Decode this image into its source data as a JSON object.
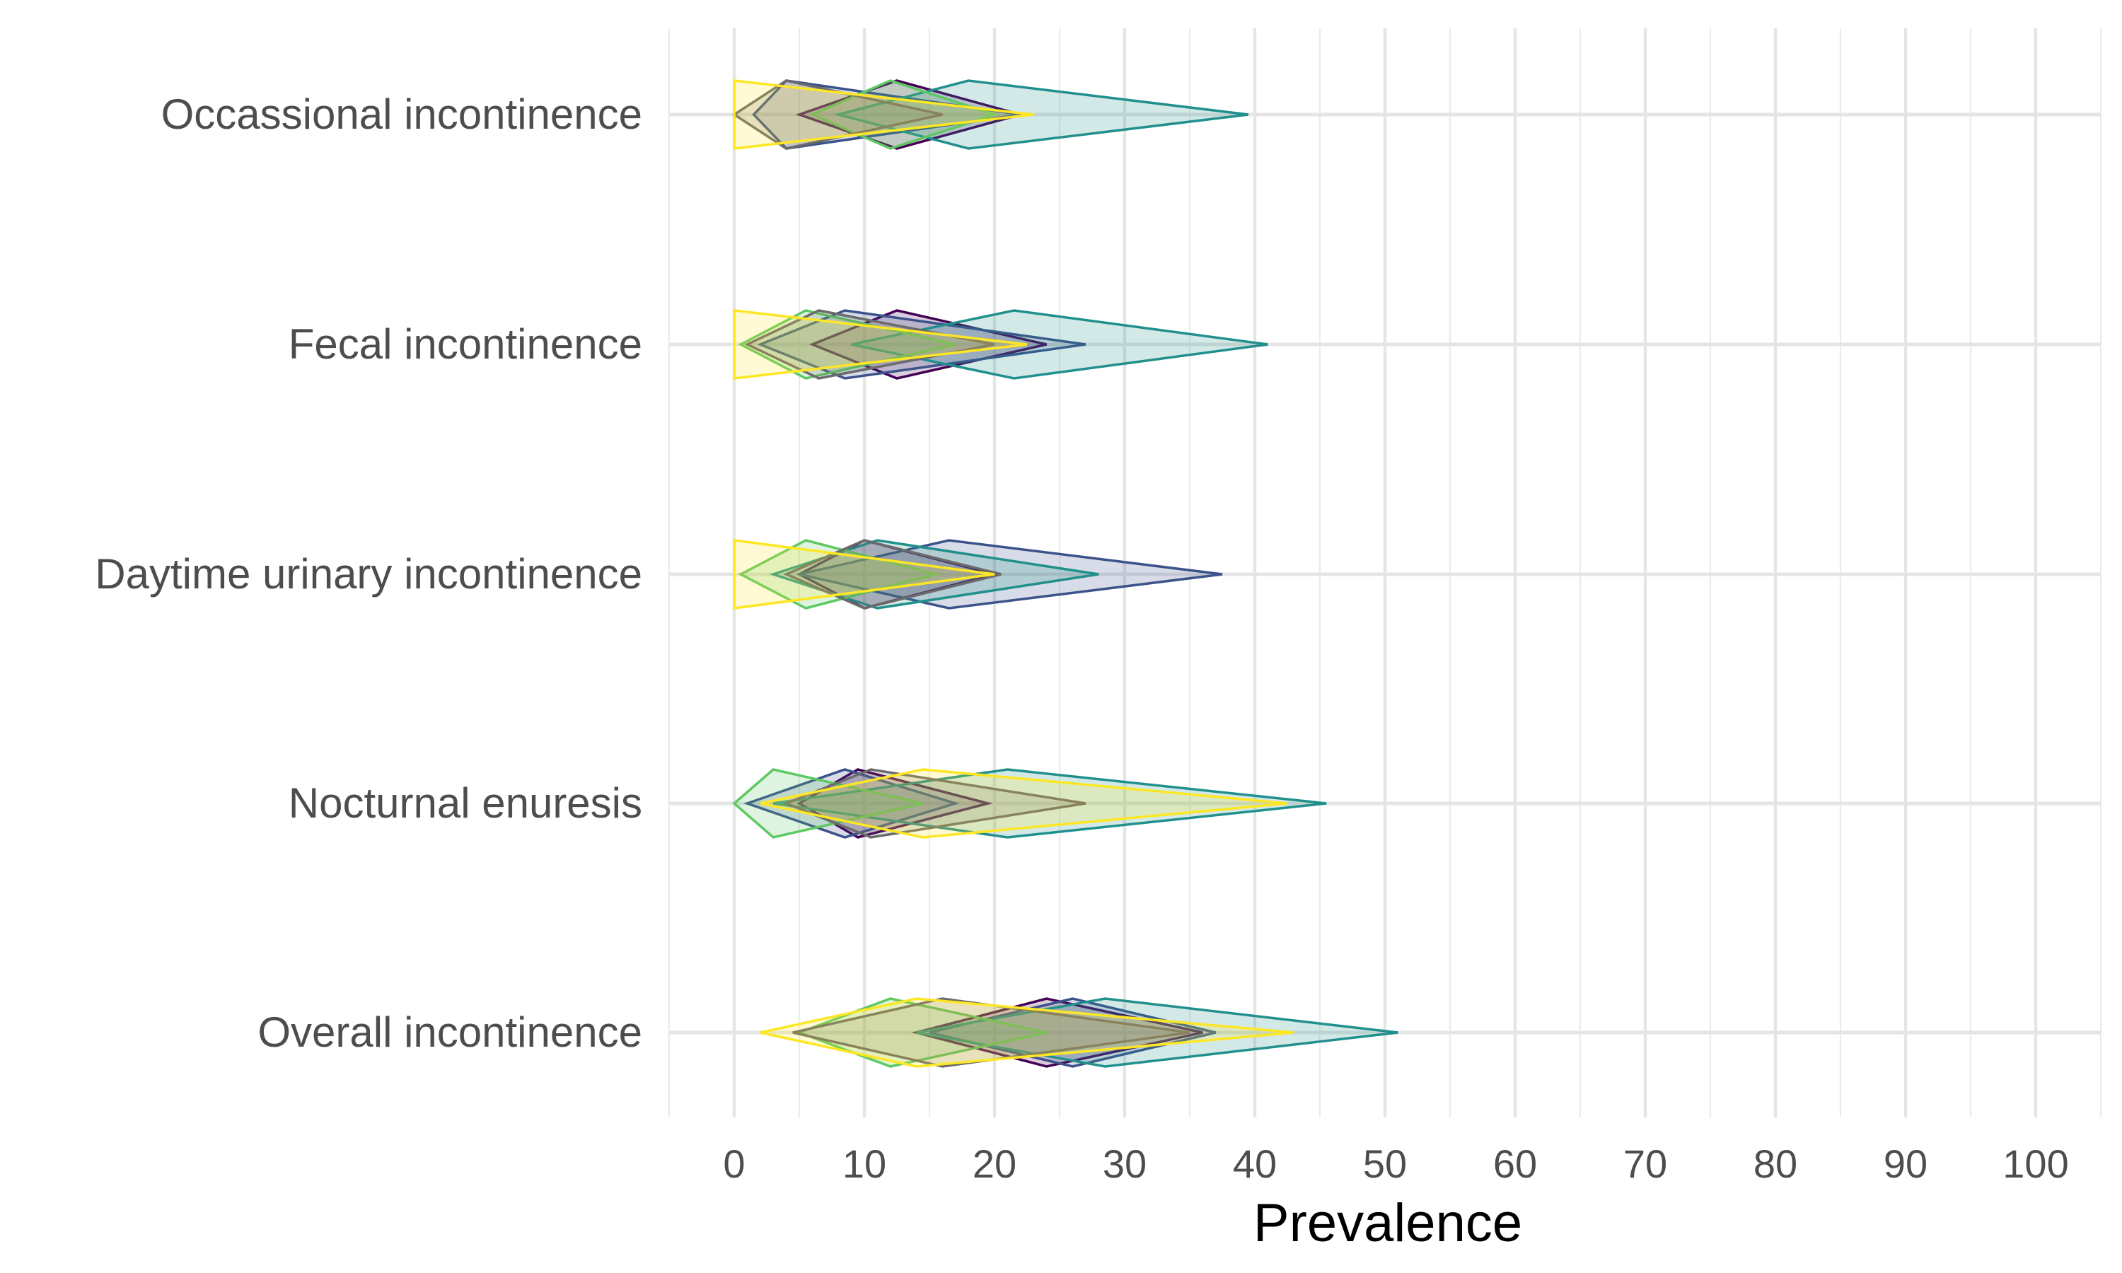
{
  "chart_data": {
    "type": "diamond-interval",
    "xlabel": "Prevalence",
    "xlim": [
      -5,
      105
    ],
    "xticks": [
      0,
      10,
      20,
      30,
      40,
      50,
      60,
      70,
      80,
      90,
      100
    ],
    "grid": true,
    "categories": [
      "Occassional incontinence",
      "Fecal incontinence",
      "Daytime urinary incontinence",
      "Nocturnal enuresis",
      "Overall incontinence"
    ],
    "series": [
      {
        "color": "#440154",
        "points": [
          {
            "category": "Occassional incontinence",
            "lower": 5.0,
            "estimate": 12.5,
            "upper": 22.0
          },
          {
            "category": "Fecal incontinence",
            "lower": 6.0,
            "estimate": 12.5,
            "upper": 24.0
          },
          {
            "category": "Daytime urinary incontinence",
            "lower": 5.0,
            "estimate": 10.0,
            "upper": 20.0
          },
          {
            "category": "Nocturnal enuresis",
            "lower": 5.0,
            "estimate": 9.5,
            "upper": 19.5
          },
          {
            "category": "Overall incontinence",
            "lower": 14.0,
            "estimate": 24.0,
            "upper": 36.0
          }
        ]
      },
      {
        "color": "#3b528b",
        "points": [
          {
            "category": "Occassional incontinence",
            "lower": 1.5,
            "estimate": 4.0,
            "upper": 22.0
          },
          {
            "category": "Fecal incontinence",
            "lower": 2.0,
            "estimate": 8.5,
            "upper": 27.0
          },
          {
            "category": "Daytime urinary incontinence",
            "lower": 5.0,
            "estimate": 16.5,
            "upper": 37.5
          },
          {
            "category": "Nocturnal enuresis",
            "lower": 1.0,
            "estimate": 8.5,
            "upper": 17.0
          },
          {
            "category": "Overall incontinence",
            "lower": 15.0,
            "estimate": 26.0,
            "upper": 37.0
          }
        ]
      },
      {
        "color": "#21908c",
        "points": [
          {
            "category": "Occassional incontinence",
            "lower": 8.0,
            "estimate": 18.0,
            "upper": 39.5
          },
          {
            "category": "Fecal incontinence",
            "lower": 9.0,
            "estimate": 21.5,
            "upper": 41.0
          },
          {
            "category": "Daytime urinary incontinence",
            "lower": 3.0,
            "estimate": 11.0,
            "upper": 28.0
          },
          {
            "category": "Nocturnal enuresis",
            "lower": 3.0,
            "estimate": 21.0,
            "upper": 45.5
          },
          {
            "category": "Overall incontinence",
            "lower": 14.0,
            "estimate": 28.5,
            "upper": 51.0
          }
        ]
      },
      {
        "color": "#5ec962",
        "points": [
          {
            "category": "Occassional incontinence",
            "lower": 6.0,
            "estimate": 12.0,
            "upper": 20.0
          },
          {
            "category": "Fecal incontinence",
            "lower": 0.5,
            "estimate": 5.5,
            "upper": 17.0
          },
          {
            "category": "Daytime urinary incontinence",
            "lower": 0.5,
            "estimate": 5.5,
            "upper": 15.5
          },
          {
            "category": "Nocturnal enuresis",
            "lower": 0.0,
            "estimate": 3.0,
            "upper": 14.5
          },
          {
            "category": "Overall incontinence",
            "lower": 5.0,
            "estimate": 12.0,
            "upper": 24.0
          }
        ]
      },
      {
        "color": "#6b6b6b",
        "points": [
          {
            "category": "Occassional incontinence",
            "lower": 0.0,
            "estimate": 4.0,
            "upper": 16.0
          },
          {
            "category": "Fecal incontinence",
            "lower": 1.0,
            "estimate": 6.5,
            "upper": 20.0
          },
          {
            "category": "Daytime urinary incontinence",
            "lower": 4.0,
            "estimate": 10.0,
            "upper": 20.5
          },
          {
            "category": "Nocturnal enuresis",
            "lower": 4.0,
            "estimate": 10.5,
            "upper": 27.0
          },
          {
            "category": "Overall incontinence",
            "lower": 4.5,
            "estimate": 16.0,
            "upper": 35.0
          }
        ]
      },
      {
        "color": "#fde725",
        "points": [
          {
            "category": "Occassional incontinence",
            "lower": 0.0,
            "estimate": 0.0,
            "upper": 23.0
          },
          {
            "category": "Fecal incontinence",
            "lower": 0.0,
            "estimate": 0.0,
            "upper": 22.5
          },
          {
            "category": "Daytime urinary incontinence",
            "lower": 0.0,
            "estimate": 0.0,
            "upper": 20.0
          },
          {
            "category": "Nocturnal enuresis",
            "lower": 2.0,
            "estimate": 14.5,
            "upper": 42.5
          },
          {
            "category": "Overall incontinence",
            "lower": 2.0,
            "estimate": 14.0,
            "upper": 43.0
          }
        ]
      }
    ]
  }
}
